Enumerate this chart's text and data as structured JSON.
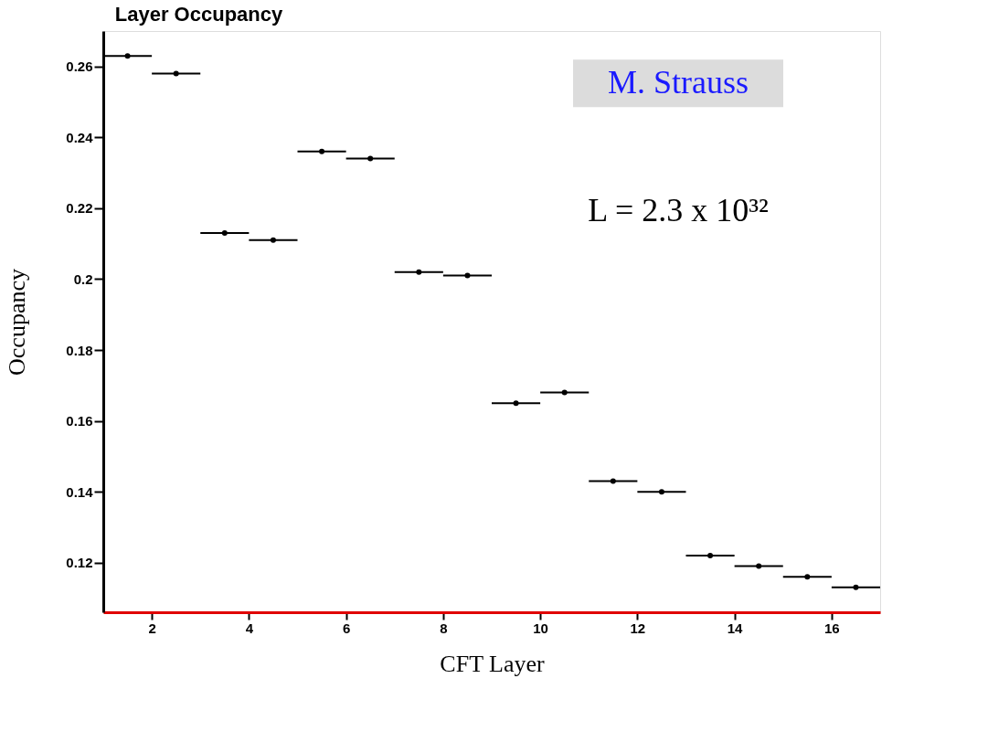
{
  "chart_data": {
    "type": "scatter",
    "title": "Layer Occupancy",
    "xlabel": "CFT Layer",
    "ylabel": "Occupancy",
    "x": [
      1.5,
      2.5,
      3.5,
      4.5,
      5.5,
      6.5,
      7.5,
      8.5,
      9.5,
      10.5,
      11.5,
      12.5,
      13.5,
      14.5,
      15.5,
      16.5
    ],
    "values": [
      0.263,
      0.258,
      0.213,
      0.211,
      0.236,
      0.234,
      0.202,
      0.201,
      0.165,
      0.168,
      0.143,
      0.14,
      0.122,
      0.119,
      0.116,
      0.113
    ],
    "xerrors": [
      0.5,
      0.5,
      0.5,
      0.5,
      0.5,
      0.5,
      0.5,
      0.5,
      0.5,
      0.5,
      0.5,
      0.5,
      0.5,
      0.5,
      0.5,
      0.5
    ],
    "color": "#000000",
    "marker": "circle",
    "xlim": [
      1,
      17
    ],
    "xticks": [
      2,
      4,
      6,
      8,
      10,
      12,
      14,
      16
    ],
    "ylim": [
      0.106,
      0.27
    ],
    "yticks": [
      0.12,
      0.14,
      0.16,
      0.18,
      0.2,
      0.22,
      0.24,
      0.26
    ],
    "grid": false,
    "annotations": [
      "M. Strauss",
      "L = 2.3 x 10³²"
    ]
  }
}
